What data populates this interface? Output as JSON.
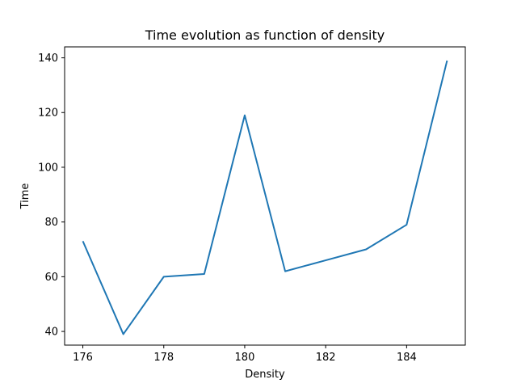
{
  "chart_data": {
    "type": "line",
    "title": "Time evolution as function of density",
    "xlabel": "Density",
    "ylabel": "Time",
    "x": [
      176,
      177,
      178,
      179,
      180,
      181,
      182,
      183,
      184,
      185
    ],
    "series": [
      {
        "values": [
          73,
          39,
          60,
          61,
          119,
          62,
          66,
          70,
          79,
          139
        ]
      }
    ],
    "xlim": [
      175.55,
      185.45
    ],
    "ylim": [
      35,
      144
    ],
    "xticks": [
      176,
      178,
      180,
      182,
      184
    ],
    "yticks": [
      40,
      60,
      80,
      100,
      120,
      140
    ],
    "grid": false,
    "legend": "none",
    "line_color": "#1f77b4"
  }
}
